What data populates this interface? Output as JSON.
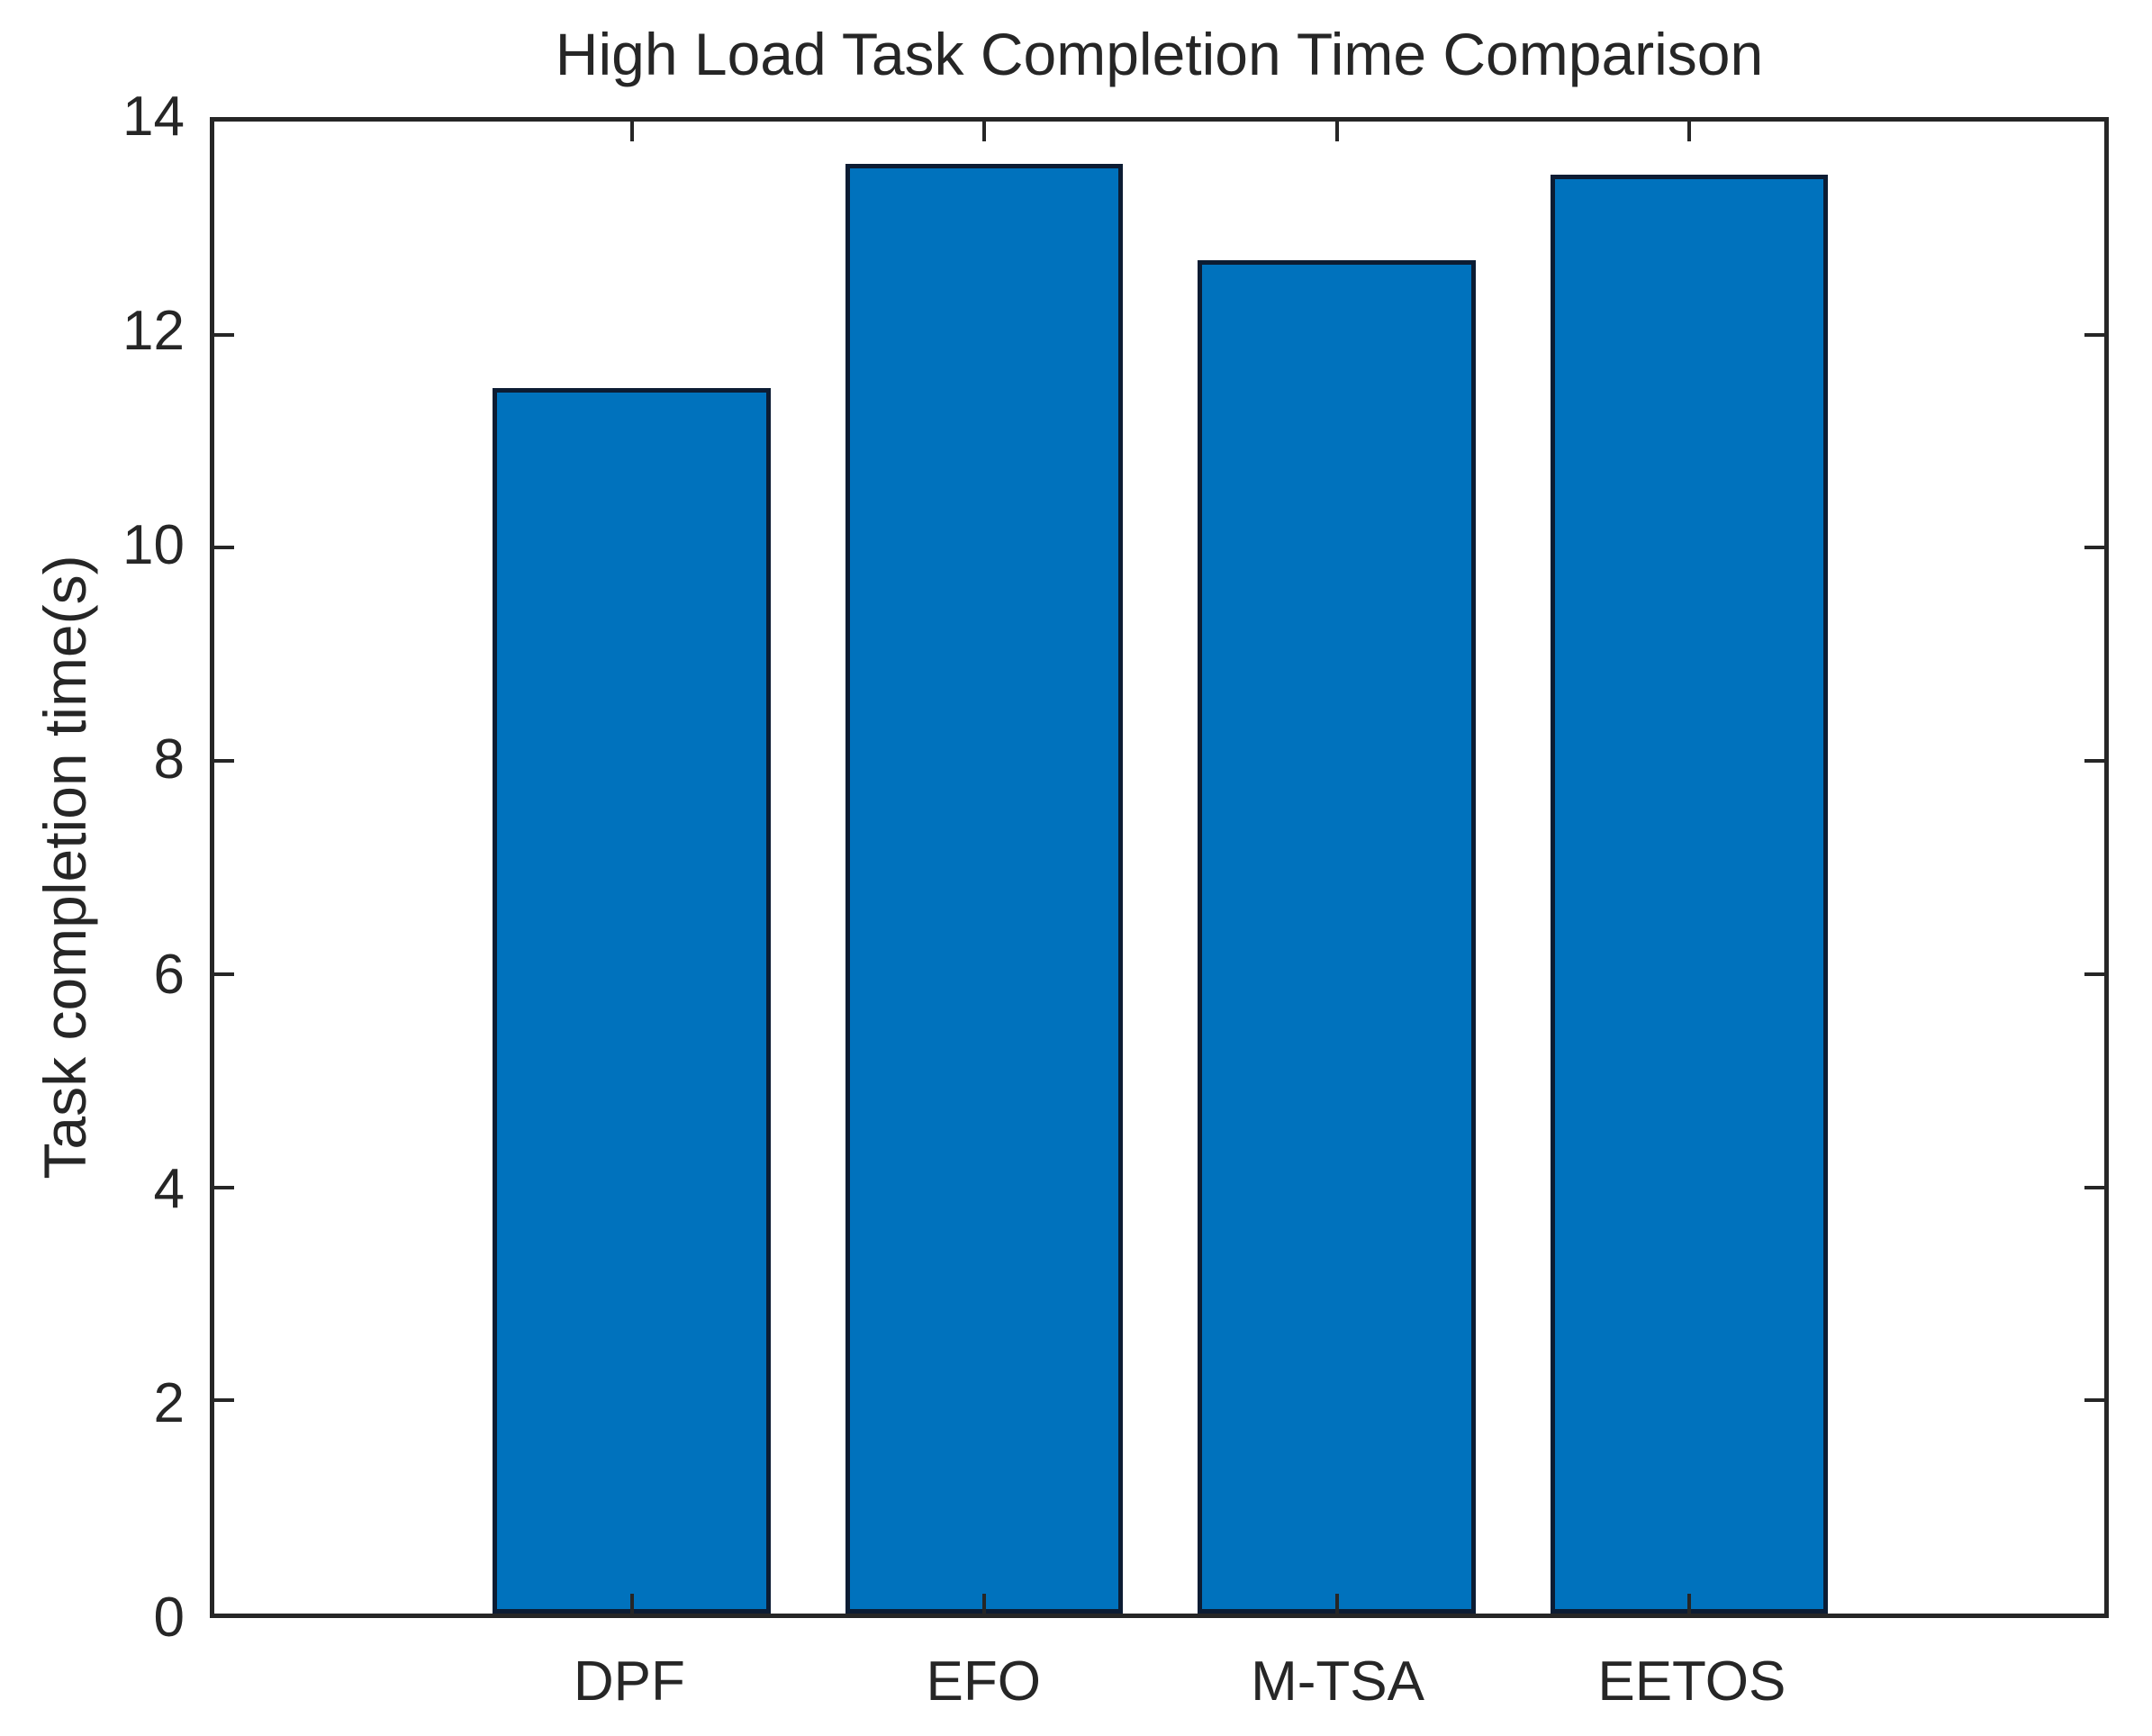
{
  "chart_data": {
    "type": "bar",
    "title": "High Load Task Completion Time Comparison",
    "ylabel": "Task completion time(s)",
    "xlabel": "",
    "categories": [
      "DPF",
      "EFO",
      "M-TSA",
      "EETOS"
    ],
    "values": [
      11.5,
      13.6,
      12.7,
      13.5
    ],
    "ylim": [
      0,
      14
    ],
    "yticks": [
      0,
      2,
      4,
      6,
      8,
      10,
      12,
      14
    ],
    "grid": false,
    "legend": false,
    "bar_color": "#0072BD",
    "bar_edge_color": "#0c1c33",
    "axis_color": "#262626",
    "background_color": "#ffffff"
  }
}
